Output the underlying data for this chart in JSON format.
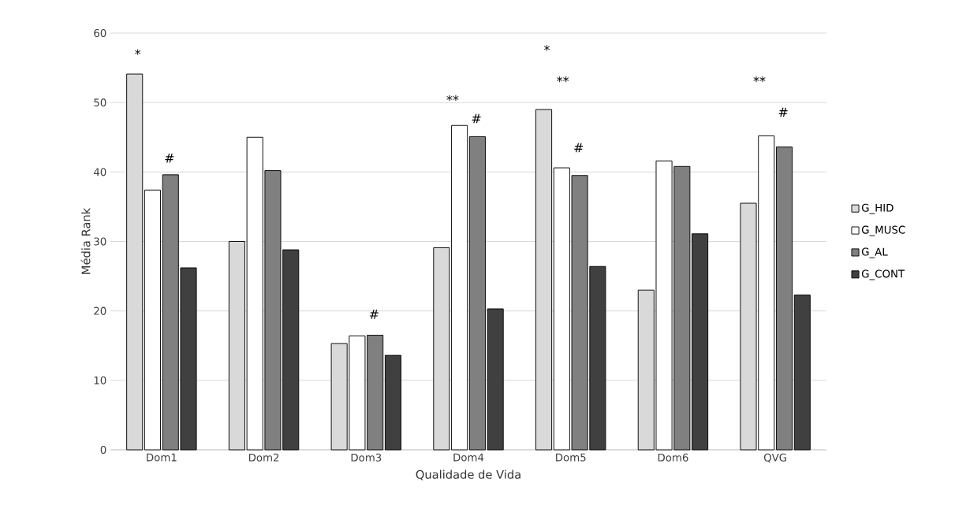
{
  "chart_data": {
    "type": "bar",
    "xlabel": "Qualidade de Vida",
    "ylabel": "Média Rank",
    "categories": [
      "Dom1",
      "Dom2",
      "Dom3",
      "Dom4",
      "Dom5",
      "Dom6",
      "QVG"
    ],
    "series": [
      {
        "name": "G_HID",
        "color": "#d9d9d9",
        "values": [
          54.1,
          30.0,
          15.3,
          29.1,
          49.0,
          23.0,
          35.5
        ]
      },
      {
        "name": "G_MUSC",
        "color": "#ffffff",
        "values": [
          37.4,
          45.0,
          16.4,
          46.7,
          40.6,
          41.6,
          45.2
        ]
      },
      {
        "name": "G_AL",
        "color": "#808080",
        "values": [
          39.6,
          40.2,
          16.5,
          45.1,
          39.5,
          40.8,
          43.6
        ]
      },
      {
        "name": "G_CONT",
        "color": "#404040",
        "values": [
          26.2,
          28.8,
          13.6,
          20.3,
          26.4,
          31.1,
          22.3
        ]
      }
    ],
    "ylim": [
      0,
      60
    ],
    "yticks": [
      0,
      10,
      20,
      30,
      40,
      50,
      60
    ],
    "grid": "y",
    "legend": "right",
    "annotations": [
      "*",
      "#",
      "#",
      "**",
      "#",
      "*",
      "**",
      "#",
      "**",
      "#"
    ]
  }
}
